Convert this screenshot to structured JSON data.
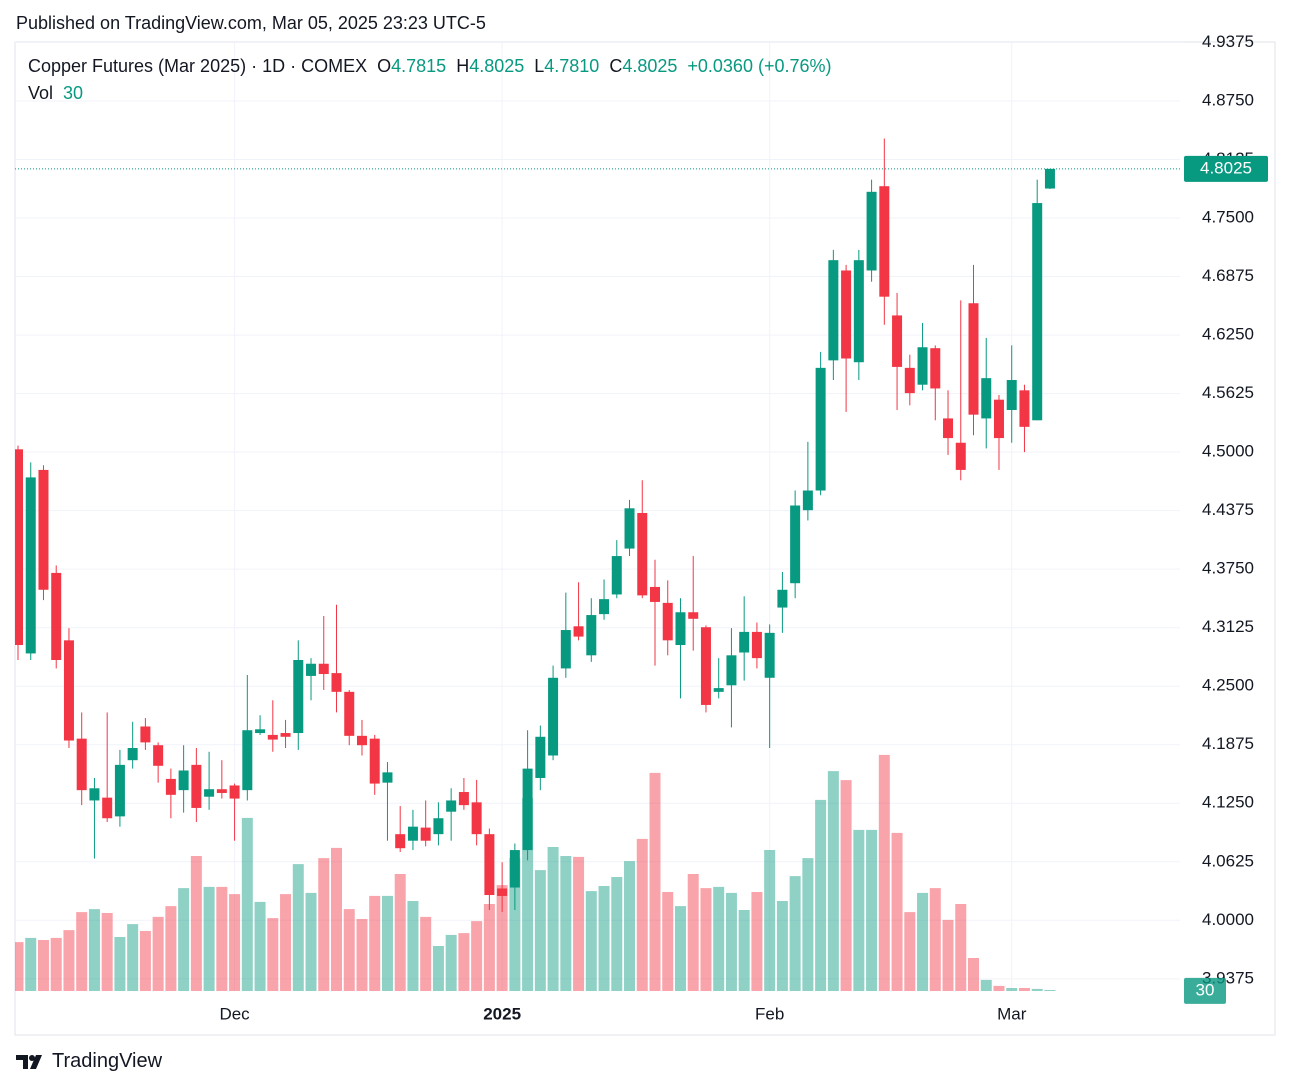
{
  "published": "Published on TradingView.com, Mar 05, 2025 23:23 UTC-5",
  "footer": "TradingView",
  "chart_data": {
    "type": "candlestick",
    "title": "Copper Futures (Mar 2025) · 1D · COMEX",
    "legend": [
      {
        "key": "O",
        "value": "4.7815"
      },
      {
        "key": "H",
        "value": "4.8025"
      },
      {
        "key": "L",
        "value": "4.7810"
      },
      {
        "key": "C",
        "value": "4.8025"
      }
    ],
    "change": "+0.0360 (+0.76%)",
    "volume_label": "Vol",
    "last_price_label": "4.8025",
    "up_color": "#089981",
    "down_color": "#f23645",
    "categories": [
      null,
      null,
      null,
      null,
      null,
      null,
      null,
      null,
      null,
      null,
      null,
      null,
      null,
      null,
      null,
      null,
      null,
      "Dec",
      null,
      null,
      null,
      null,
      null,
      null,
      null,
      null,
      null,
      null,
      null,
      null,
      null,
      null,
      null,
      null,
      null,
      null,
      null,
      null,
      "2025",
      null,
      null,
      null,
      null,
      null,
      null,
      null,
      null,
      null,
      null,
      null,
      null,
      null,
      null,
      null,
      null,
      null,
      null,
      null,
      null,
      "Feb",
      null,
      null,
      null,
      null,
      null,
      null,
      null,
      null,
      null,
      null,
      null,
      null,
      null,
      null,
      null,
      null,
      null,
      null,
      "Mar",
      null,
      null,
      null
    ],
    "open": [
      4.503,
      4.285,
      4.481,
      4.371,
      4.299,
      4.194,
      4.128,
      4.131,
      4.111,
      4.171,
      4.207,
      4.187,
      4.151,
      4.139,
      4.166,
      4.132,
      4.14,
      4.144,
      4.139,
      4.2,
      4.198,
      4.2,
      4.2,
      4.261,
      4.274,
      4.264,
      4.244,
      4.197,
      4.194,
      4.147,
      4.092,
      4.085,
      4.099,
      4.092,
      4.116,
      4.137,
      4.126,
      4.092,
      4.034,
      4.035,
      4.075,
      4.152,
      4.176,
      4.269,
      4.314,
      4.283,
      4.327,
      4.348,
      4.397,
      4.435,
      4.356,
      4.339,
      4.294,
      4.329,
      4.313,
      4.244,
      4.251,
      4.286,
      4.308,
      4.259,
      4.334,
      4.36,
      4.438,
      4.459,
      4.598,
      4.694,
      4.596,
      4.694,
      4.784,
      4.646,
      4.59,
      4.572,
      4.611,
      4.536,
      4.51,
      4.659,
      4.536,
      4.556,
      4.545,
      4.566,
      4.534,
      4.7815
    ],
    "high": [
      4.507,
      4.489,
      4.486,
      4.379,
      4.312,
      4.222,
      4.152,
      4.222,
      4.182,
      4.212,
      4.216,
      4.19,
      4.162,
      4.187,
      4.184,
      4.18,
      4.171,
      4.146,
      4.262,
      4.219,
      4.235,
      4.214,
      4.299,
      4.28,
      4.325,
      4.337,
      4.246,
      4.214,
      4.198,
      4.169,
      4.122,
      4.118,
      4.128,
      4.126,
      4.141,
      4.152,
      4.15,
      4.098,
      4.062,
      4.082,
      4.203,
      4.208,
      4.272,
      4.35,
      4.361,
      4.344,
      4.364,
      4.406,
      4.449,
      4.47,
      4.385,
      4.363,
      4.344,
      4.389,
      4.315,
      4.28,
      4.312,
      4.346,
      4.318,
      4.316,
      4.372,
      4.459,
      4.511,
      4.607,
      4.716,
      4.7,
      4.716,
      4.791,
      4.835,
      4.67,
      4.604,
      4.638,
      4.614,
      4.566,
      4.662,
      4.7,
      4.622,
      4.561,
      4.614,
      4.572,
      4.791,
      4.8025
    ],
    "low": [
      4.278,
      4.278,
      4.342,
      4.269,
      4.184,
      4.123,
      4.066,
      4.105,
      4.1,
      4.162,
      4.182,
      4.147,
      4.109,
      4.115,
      4.105,
      4.118,
      4.13,
      4.085,
      4.128,
      4.198,
      4.18,
      4.184,
      4.182,
      4.235,
      4.246,
      4.222,
      4.187,
      4.176,
      4.134,
      4.085,
      4.073,
      4.075,
      4.079,
      4.08,
      4.085,
      4.118,
      4.08,
      4.011,
      4.009,
      4.011,
      4.064,
      4.139,
      4.171,
      4.259,
      4.299,
      4.276,
      4.321,
      4.344,
      4.389,
      4.344,
      4.272,
      4.283,
      4.237,
      4.288,
      4.222,
      4.237,
      4.206,
      4.256,
      4.269,
      4.184,
      4.307,
      4.344,
      4.427,
      4.454,
      4.577,
      4.543,
      4.577,
      4.682,
      4.636,
      4.545,
      4.55,
      4.566,
      4.534,
      4.497,
      4.47,
      4.518,
      4.504,
      4.481,
      4.51,
      4.5,
      4.534,
      4.781
    ],
    "close": [
      4.294,
      4.473,
      4.353,
      4.278,
      4.192,
      4.139,
      4.141,
      4.109,
      4.166,
      4.184,
      4.19,
      4.165,
      4.134,
      4.16,
      4.12,
      4.14,
      4.136,
      4.13,
      4.203,
      4.204,
      4.193,
      4.196,
      4.278,
      4.274,
      4.263,
      4.244,
      4.197,
      4.187,
      4.146,
      4.158,
      4.077,
      4.1,
      4.085,
      4.109,
      4.128,
      4.123,
      4.092,
      4.027,
      4.026,
      4.075,
      4.162,
      4.196,
      4.259,
      4.31,
      4.303,
      4.326,
      4.343,
      4.389,
      4.44,
      4.347,
      4.34,
      4.299,
      4.329,
      4.322,
      4.23,
      4.248,
      4.283,
      4.308,
      4.28,
      4.307,
      4.353,
      4.443,
      4.459,
      4.59,
      4.705,
      4.6,
      4.705,
      4.778,
      4.666,
      4.591,
      4.563,
      4.612,
      4.568,
      4.515,
      4.481,
      4.54,
      4.579,
      4.515,
      4.577,
      4.527,
      4.766,
      4.8025
    ],
    "volume": [
      16300,
      17700,
      17000,
      17700,
      20300,
      26300,
      27300,
      26000,
      18000,
      22300,
      20000,
      24700,
      28300,
      34300,
      45000,
      34700,
      34700,
      32300,
      57700,
      29700,
      24300,
      32300,
      42300,
      32700,
      44300,
      47700,
      27300,
      24000,
      31700,
      31700,
      39000,
      30000,
      24700,
      15000,
      18700,
      19300,
      23300,
      29000,
      35300,
      44300,
      64300,
      40300,
      48000,
      45000,
      44700,
      33300,
      35000,
      38000,
      43300,
      50700,
      72700,
      33000,
      28300,
      39000,
      34300,
      34700,
      32700,
      27000,
      33000,
      47000,
      30000,
      38300,
      44300,
      63700,
      73300,
      70300,
      53700,
      53700,
      78700,
      52700,
      26300,
      32700,
      34300,
      23700,
      29000,
      11000,
      3700,
      1700,
      1000,
      1000,
      700,
      30
    ],
    "volume_lim": [
      0,
      100000
    ],
    "ylim": [
      3.9245,
      4.938
    ],
    "yticks": [
      {
        "value": 3.9375,
        "label": "3.9375"
      },
      {
        "value": 4.0,
        "label": "4.0000"
      },
      {
        "value": 4.0625,
        "label": "4.0625"
      },
      {
        "value": 4.125,
        "label": "4.1250"
      },
      {
        "value": 4.1875,
        "label": "4.1875"
      },
      {
        "value": 4.25,
        "label": "4.2500"
      },
      {
        "value": 4.3125,
        "label": "4.3125"
      },
      {
        "value": 4.375,
        "label": "4.3750"
      },
      {
        "value": 4.4375,
        "label": "4.4375"
      },
      {
        "value": 4.5,
        "label": "4.5000"
      },
      {
        "value": 4.5625,
        "label": "4.5625"
      },
      {
        "value": 4.625,
        "label": "4.6250"
      },
      {
        "value": 4.6875,
        "label": "4.6875"
      },
      {
        "value": 4.75,
        "label": "4.7500"
      },
      {
        "value": 4.8125,
        "label": "4.8125"
      },
      {
        "value": 4.875,
        "label": "4.8750"
      },
      {
        "value": 4.9375,
        "label": "4.9375"
      }
    ],
    "grid": true
  }
}
